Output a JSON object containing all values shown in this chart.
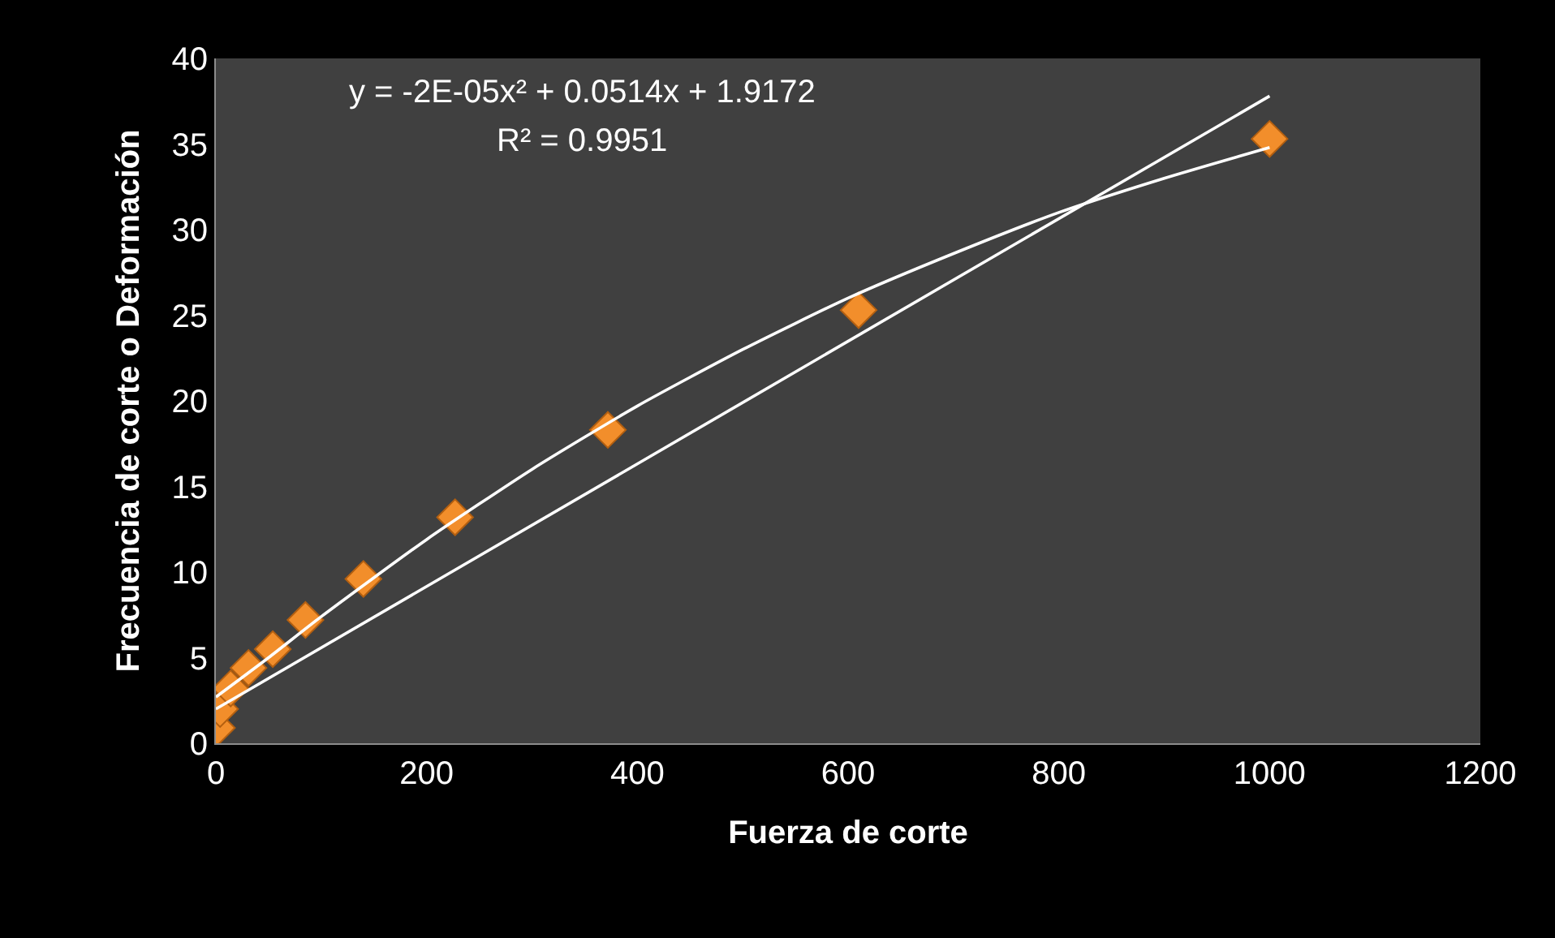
{
  "chart_data": {
    "type": "scatter",
    "xlabel": "Fuerza de corte",
    "ylabel": "Frecuencia de corte o Deformación",
    "annotations": [
      "y = -2E-05x² + 0.0514x + 1.9172",
      "R² = 0.9951"
    ],
    "xlim": [
      0,
      1200
    ],
    "xticks": [
      0,
      200,
      400,
      600,
      800,
      1000,
      1200
    ],
    "ylim": [
      0,
      40
    ],
    "yticks": [
      0,
      5,
      10,
      15,
      20,
      25,
      30,
      35,
      40
    ],
    "grid": false,
    "marker": "diamond",
    "series": [
      {
        "type": "line",
        "color": "#ffffff",
        "marker": "none",
        "x": [
          0,
          1000
        ],
        "values": [
          2.0,
          37.8
        ]
      },
      {
        "type": "line",
        "color": "#ffffff",
        "marker": "none",
        "x": [
          0,
          50,
          100,
          200,
          300,
          400,
          500,
          600,
          700,
          800,
          900,
          1000
        ],
        "values": [
          2.7,
          5.0,
          7.4,
          11.9,
          16.0,
          19.7,
          23.0,
          26.0,
          28.6,
          31.0,
          33.0,
          34.8
        ]
      },
      {
        "color": "#f28e2b",
        "x": [
          1,
          4,
          14,
          31,
          54,
          85,
          140,
          227,
          372,
          610,
          1000
        ],
        "values": [
          0.9,
          2.0,
          3.2,
          4.4,
          5.5,
          7.2,
          9.6,
          13.2,
          18.3,
          25.3,
          35.3
        ]
      }
    ]
  }
}
